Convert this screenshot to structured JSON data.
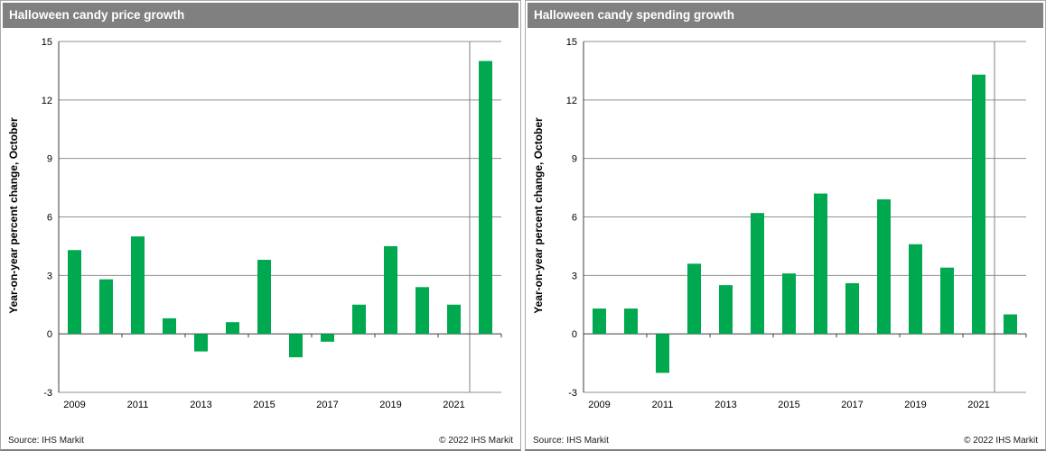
{
  "colors": {
    "bar_green": "#00A84F",
    "title_bar_bg": "#808080",
    "title_text": "#ffffff",
    "grid": "#8f8f8f",
    "axis": "#3d3d3d",
    "separator": "#808080"
  },
  "panels": [
    {
      "title": "Halloween candy price growth",
      "ylabel": "Year-on-year percent change, October",
      "source": "Source: IHS Markit",
      "copyright": "© 2022  IHS Markit"
    },
    {
      "title": "Halloween candy spending growth",
      "ylabel": "Year-on-year percent change, October",
      "source": "Source: IHS Markit",
      "copyright": "© 2022  IHS Markit"
    }
  ],
  "chart_data": [
    {
      "type": "bar",
      "title": "Halloween candy price growth",
      "xlabel": "",
      "ylabel": "Year-on-year percent change, October",
      "ylim": [
        -3,
        15
      ],
      "yticks": [
        15,
        12,
        9,
        6,
        3,
        0,
        -3
      ],
      "grid": true,
      "legend": "none",
      "categories": [
        "2009",
        "2010",
        "2011",
        "2012",
        "2013",
        "2014",
        "2015",
        "2016",
        "2017",
        "2018",
        "2019",
        "2020",
        "2021",
        "2022"
      ],
      "values": [
        4.3,
        2.8,
        5.0,
        0.8,
        -0.9,
        0.6,
        3.8,
        -1.2,
        -0.4,
        1.5,
        4.5,
        2.4,
        1.5,
        14.0
      ],
      "xtick_labels": [
        "2009",
        "2011",
        "2013",
        "2015",
        "2017",
        "2019",
        "2021"
      ],
      "separator_after": "2021",
      "bar_color": "#00A84F"
    },
    {
      "type": "bar",
      "title": "Halloween candy spending growth",
      "xlabel": "",
      "ylabel": "Year-on-year percent change, October",
      "ylim": [
        -3,
        15
      ],
      "yticks": [
        15,
        12,
        9,
        6,
        3,
        0,
        -3
      ],
      "grid": true,
      "legend": "none",
      "categories": [
        "2009",
        "2010",
        "2011",
        "2012",
        "2013",
        "2014",
        "2015",
        "2016",
        "2017",
        "2018",
        "2019",
        "2020",
        "2021",
        "2022"
      ],
      "values": [
        1.3,
        1.3,
        -2.0,
        3.6,
        2.5,
        6.2,
        3.1,
        7.2,
        2.6,
        6.9,
        4.6,
        3.4,
        13.3,
        1.0
      ],
      "xtick_labels": [
        "2009",
        "2011",
        "2013",
        "2015",
        "2017",
        "2019",
        "2021"
      ],
      "separator_after": "2021",
      "bar_color": "#00A84F"
    }
  ]
}
